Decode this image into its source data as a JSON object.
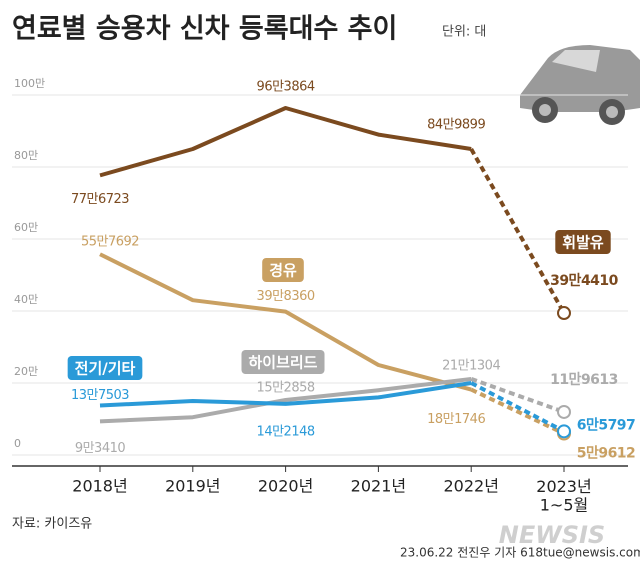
{
  "chart_data": {
    "type": "line",
    "title": "연료별 승용차 신차 등록대수 추이",
    "unit": "단위: 대",
    "source": "자료: 카이즈유",
    "credit": "23.06.22 전진우 기자 618tue@newsis.com",
    "watermark": "NEWSIS",
    "categories": [
      "2018년",
      "2019년",
      "2020년",
      "2021년",
      "2022년",
      "2023년\n1~5월"
    ],
    "ylim": [
      0,
      100
    ],
    "yticks": [
      0,
      {
        "value": 20,
        "label": "20만"
      },
      {
        "value": 40,
        "label": "40만"
      },
      {
        "value": 60,
        "label": "60만"
      },
      {
        "value": 80,
        "label": "80만"
      },
      {
        "value": 100,
        "label": "100만"
      }
    ],
    "grid": true,
    "series": [
      {
        "name": "휘발유",
        "color": "#7b4a1f",
        "values": [
          77.6723,
          85,
          96.3864,
          89,
          84.9899,
          39.441
        ],
        "value_labels": [
          "77만6723",
          null,
          "96만3864",
          null,
          "84만9899",
          "39만4410"
        ]
      },
      {
        "name": "경유",
        "color": "#c9a062",
        "values": [
          55.7692,
          43,
          39.836,
          25,
          18.1746,
          5.9612
        ],
        "value_labels": [
          "55만7692",
          null,
          "39만8360",
          null,
          "18만1746",
          "5만9612"
        ]
      },
      {
        "name": "하이브리드",
        "color": "#ababab",
        "values": [
          9.341,
          10.5,
          15.2858,
          18,
          21.1304,
          11.9613
        ],
        "value_labels": [
          "9만3410",
          null,
          "15만2858",
          null,
          "21만1304",
          "11만9613"
        ]
      },
      {
        "name": "전기/기타",
        "color": "#2a9ad8",
        "values": [
          13.7503,
          15,
          14.2148,
          16,
          20,
          6.5797
        ],
        "value_labels": [
          "13만7503",
          null,
          "14만2148",
          null,
          null,
          "6만5797"
        ]
      }
    ]
  }
}
